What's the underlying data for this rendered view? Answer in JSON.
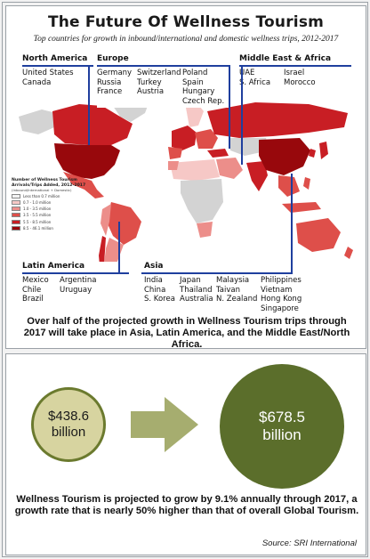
{
  "header": {
    "title": "The Future Of Wellness Tourism",
    "subtitle": "Top countries for growth in inbound/international and domestic wellness trips, 2012-2017"
  },
  "regions": {
    "north_america": {
      "title": "North America",
      "columns": [
        "United States\nCanada"
      ]
    },
    "europe": {
      "title": "Europe",
      "columns": [
        "Germany\nRussia\nFrance",
        "Switzerland\nTurkey\nAustria",
        "Poland\nSpain\nHungary\nCzech Rep."
      ]
    },
    "middle_east_africa": {
      "title": "Middle East & Africa",
      "columns": [
        "UAE\nS. Africa",
        "Israel\nMorocco"
      ]
    },
    "latin_america": {
      "title": "Latin America",
      "columns": [
        "Mexico\nChile\nBrazil",
        "Argentina\nUruguay"
      ]
    },
    "asia": {
      "title": "Asia",
      "columns": [
        "India\nChina\nS. Korea",
        "Japan\nThailand\nAustralia",
        "Malaysia\nTaivan\nN. Zealand",
        "Philippines\nVietnam\nHong Kong\nSingapore"
      ]
    }
  },
  "legend": {
    "title": "Number of Wellness Tourism Arrivals/Trips Added, 2012-2017",
    "note": "(Inbound/International + Domestic)",
    "items": [
      {
        "label": "Less than 0.7 million",
        "color": "#f3f3f3"
      },
      {
        "label": "0.7 - 1.0 million",
        "color": "#f6c8c6"
      },
      {
        "label": "1.0 - 3.5 million",
        "color": "#ec8e8a"
      },
      {
        "label": "3.5 - 5.5 million",
        "color": "#de4f4a"
      },
      {
        "label": "5.5 - 8.5 million",
        "color": "#c81e24"
      },
      {
        "label": "8.5 - 46.1 million",
        "color": "#98080c"
      }
    ]
  },
  "map_colors": {
    "ocean": "#ffffff",
    "land_default": "#d3d3d3",
    "level_1": "#f6c8c6",
    "level_2": "#ec8e8a",
    "level_3": "#de4f4a",
    "level_4": "#c81e24",
    "level_5": "#98080c",
    "leader_line": "#1f3f9e"
  },
  "growth_statement": "Over half of the projected growth in Wellness Tourism trips through 2017 will take place in Asia, Latin America, and the Middle East/North Africa.",
  "comparison": {
    "current_value": "$438.6\nbillion",
    "future_value": "$678.5\nbillion",
    "arrow_icon": "right-arrow",
    "colors": {
      "small_fill": "#d7d4a0",
      "small_border": "#6b7a2e",
      "big_fill": "#5b6e2b",
      "arrow": "#a6ad6f"
    }
  },
  "projection_statement": "Wellness Tourism is projected to grow by 9.1% annually through 2017, a growth rate that is nearly 50% higher than that of overall Global Tourism.",
  "source": "Source: SRI International"
}
